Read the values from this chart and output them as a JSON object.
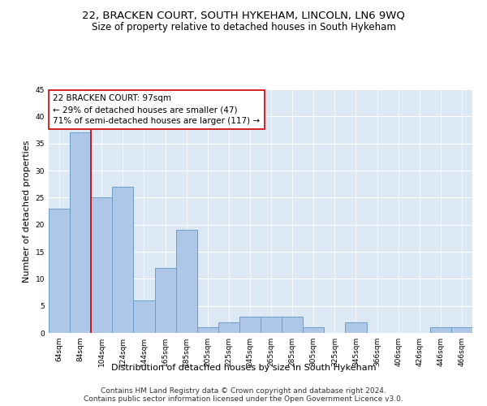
{
  "title": "22, BRACKEN COURT, SOUTH HYKEHAM, LINCOLN, LN6 9WQ",
  "subtitle": "Size of property relative to detached houses in South Hykeham",
  "xlabel": "Distribution of detached houses by size in South Hykeham",
  "ylabel": "Number of detached properties",
  "categories": [
    "64sqm",
    "84sqm",
    "104sqm",
    "124sqm",
    "144sqm",
    "165sqm",
    "185sqm",
    "205sqm",
    "225sqm",
    "245sqm",
    "265sqm",
    "285sqm",
    "305sqm",
    "325sqm",
    "345sqm",
    "366sqm",
    "406sqm",
    "426sqm",
    "446sqm",
    "466sqm"
  ],
  "values": [
    23,
    37,
    25,
    27,
    6,
    12,
    19,
    1,
    2,
    3,
    3,
    3,
    1,
    0,
    2,
    0,
    0,
    0,
    1,
    1
  ],
  "bar_color": "#aec6e8",
  "bar_edge_color": "#6a9fc8",
  "vline_x": 1.5,
  "vline_color": "#cc0000",
  "annotation_box_text": "22 BRACKEN COURT: 97sqm\n← 29% of detached houses are smaller (47)\n71% of semi-detached houses are larger (117) →",
  "annotation_box_color": "#cc0000",
  "ylim": [
    0,
    45
  ],
  "yticks": [
    0,
    5,
    10,
    15,
    20,
    25,
    30,
    35,
    40,
    45
  ],
  "background_color": "#dde8f5",
  "footer1": "Contains HM Land Registry data © Crown copyright and database right 2024.",
  "footer2": "Contains public sector information licensed under the Open Government Licence v3.0.",
  "title_fontsize": 9.5,
  "subtitle_fontsize": 8.5,
  "xlabel_fontsize": 8,
  "ylabel_fontsize": 8,
  "annotation_fontsize": 7.5,
  "footer_fontsize": 6.5,
  "tick_fontsize": 6.5
}
